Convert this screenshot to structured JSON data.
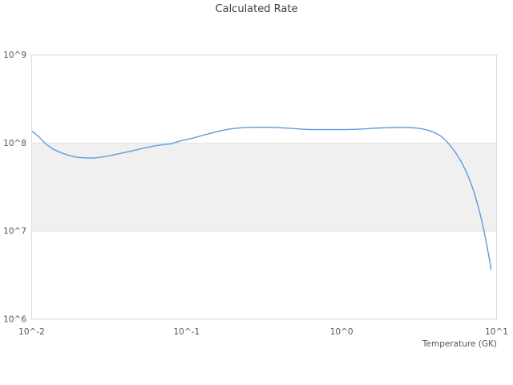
{
  "chart_data": {
    "type": "line",
    "title": "Calculated Rate",
    "xlabel": "Temperature (GK)",
    "ylabel": "",
    "x_scale": "log",
    "y_scale": "log",
    "xlim": [
      0.01,
      10
    ],
    "ylim": [
      1000000,
      1000000000
    ],
    "grid": "horizontal-only",
    "legend": "none",
    "x_ticks": [
      {
        "value": 0.01,
        "label": "10^-2"
      },
      {
        "value": 0.1,
        "label": "10^-1"
      },
      {
        "value": 1,
        "label": "10^0"
      },
      {
        "value": 10,
        "label": "10^1"
      }
    ],
    "y_ticks": [
      {
        "value": 1000000,
        "label": "10^6"
      },
      {
        "value": 10000000,
        "label": "10^7"
      },
      {
        "value": 100000000,
        "label": "10^8"
      },
      {
        "value": 1000000000,
        "label": "10^9"
      }
    ],
    "shaded_band": {
      "y_min": 10000000,
      "y_max": 100000000,
      "color": "#f0f0f0"
    },
    "colors": {
      "line": "#5b9dde",
      "gridline": "#e4e4e4",
      "plot_border": "#dcdcdc",
      "tick_text": "#555555",
      "title_text": "#3c3c3c",
      "background": "#ffffff"
    },
    "series": [
      {
        "name": "calculated-rate",
        "points": [
          [
            0.0101,
            136000000
          ],
          [
            0.0111,
            118000000
          ],
          [
            0.0124,
            97000000
          ],
          [
            0.0138,
            85000000
          ],
          [
            0.0154,
            78000000
          ],
          [
            0.0173,
            72500000
          ],
          [
            0.0195,
            69000000
          ],
          [
            0.022,
            67800000
          ],
          [
            0.0247,
            67600000
          ],
          [
            0.0279,
            69000000
          ],
          [
            0.0314,
            71300000
          ],
          [
            0.0375,
            76400000
          ],
          [
            0.0448,
            81700000
          ],
          [
            0.0536,
            88000000
          ],
          [
            0.0641,
            93700000
          ],
          [
            0.0794,
            98300000
          ],
          [
            0.0917,
            106000000
          ],
          [
            0.11,
            114000000
          ],
          [
            0.131,
            124000000
          ],
          [
            0.157,
            135000000
          ],
          [
            0.176,
            141000000
          ],
          [
            0.199,
            146000000
          ],
          [
            0.224,
            149000000
          ],
          [
            0.252,
            150500000
          ],
          [
            0.284,
            151000000
          ],
          [
            0.32,
            151000000
          ],
          [
            0.361,
            150700000
          ],
          [
            0.406,
            149000000
          ],
          [
            0.457,
            147000000
          ],
          [
            0.515,
            145000000
          ],
          [
            0.58,
            143000000
          ],
          [
            0.654,
            142000000
          ],
          [
            0.736,
            142000000
          ],
          [
            0.881,
            142000000
          ],
          [
            1.05,
            142000000
          ],
          [
            1.19,
            143000000
          ],
          [
            1.34,
            144000000
          ],
          [
            1.5,
            146000000
          ],
          [
            1.7,
            148000000
          ],
          [
            1.91,
            149000000
          ],
          [
            2.15,
            150000000
          ],
          [
            2.42,
            150200000
          ],
          [
            2.73,
            150000000
          ],
          [
            3.0,
            148300000
          ],
          [
            3.3,
            145000000
          ],
          [
            3.68,
            138400000
          ],
          [
            4.05,
            129400000
          ],
          [
            4.4,
            118700000
          ],
          [
            4.72,
            106200000
          ],
          [
            5.01,
            94200000
          ],
          [
            5.32,
            82200000
          ],
          [
            5.65,
            70200000
          ],
          [
            5.99,
            58800000
          ],
          [
            6.36,
            47600000
          ],
          [
            6.75,
            37000000
          ],
          [
            7.16,
            27600000
          ],
          [
            7.51,
            20600000
          ],
          [
            7.88,
            15000000
          ],
          [
            8.17,
            11400000
          ],
          [
            8.46,
            8500000
          ],
          [
            8.67,
            6800000
          ],
          [
            8.88,
            5400000
          ],
          [
            9.09,
            4300000
          ],
          [
            9.2,
            3680000
          ]
        ]
      }
    ]
  }
}
